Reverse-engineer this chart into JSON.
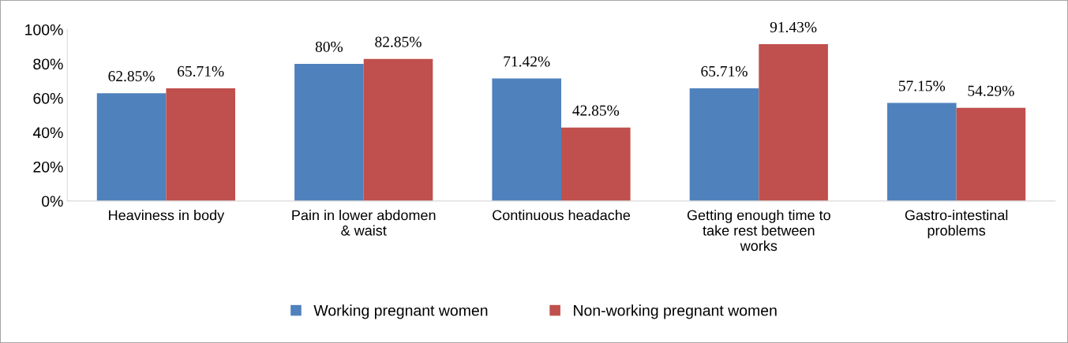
{
  "chart_data": {
    "type": "bar",
    "categories": [
      "Heaviness in body",
      "Pain in lower abdomen\n& waist",
      "Continuous headache",
      "Getting enough time to\ntake rest between\nworks",
      "Gastro-intestinal\nproblems"
    ],
    "series": [
      {
        "name": "Working pregnant women",
        "color": "#4f81bd",
        "values": [
          62.85,
          80,
          71.42,
          65.71,
          57.15
        ],
        "value_labels": [
          "62.85%",
          "80%",
          "71.42%",
          "65.71%",
          "57.15%"
        ]
      },
      {
        "name": "Non-working pregnant women",
        "color": "#c0504d",
        "values": [
          65.71,
          82.85,
          42.85,
          91.43,
          54.29
        ],
        "value_labels": [
          "65.71%",
          "82.85%",
          "42.85%",
          "91.43%",
          "54.29%"
        ]
      }
    ],
    "ylim": [
      0,
      100
    ],
    "yticks": [
      {
        "value": 0,
        "label": "0%"
      },
      {
        "value": 20,
        "label": "20%"
      },
      {
        "value": 40,
        "label": "40%"
      },
      {
        "value": 60,
        "label": "60%"
      },
      {
        "value": 80,
        "label": "80%"
      },
      {
        "value": 100,
        "label": "100%"
      }
    ],
    "grid": false,
    "legend": "bottom"
  }
}
